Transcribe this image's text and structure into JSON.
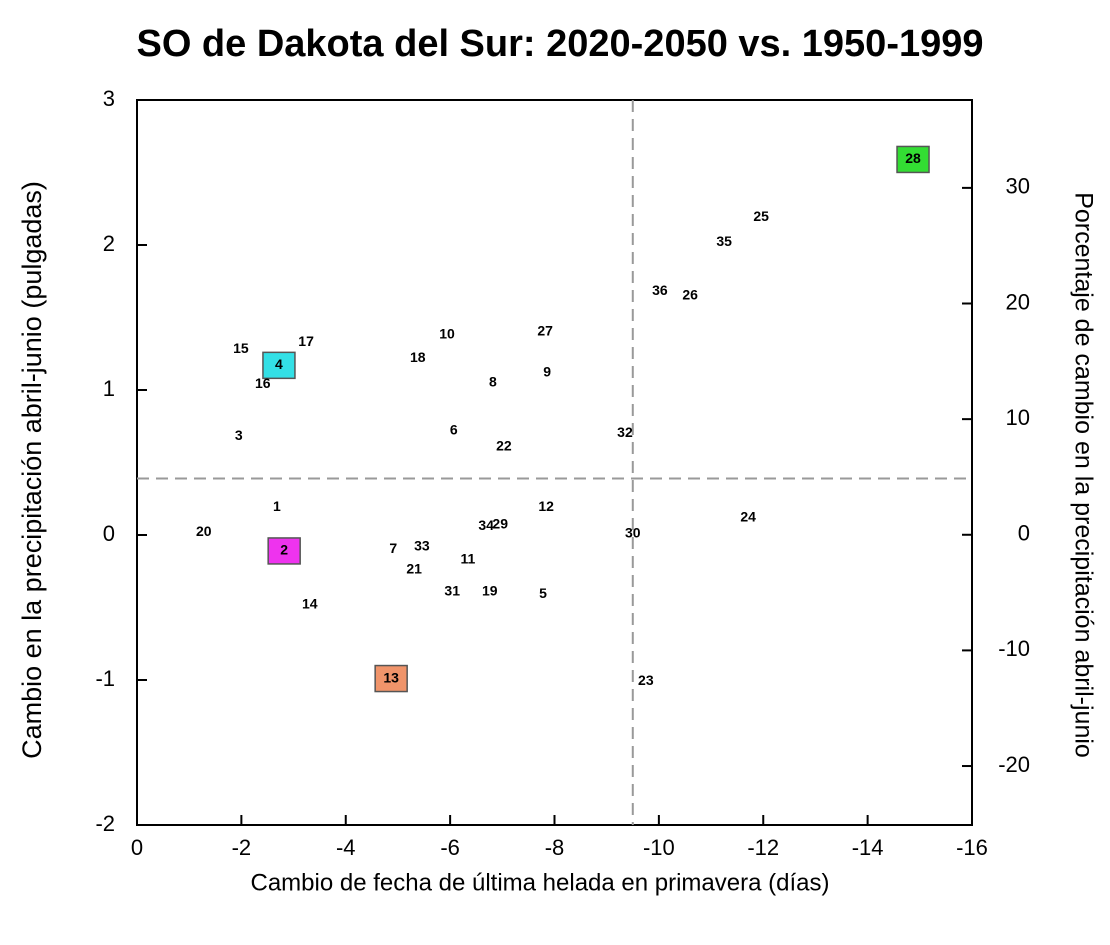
{
  "chart_data": {
    "type": "scatter",
    "title": "SO de Dakota del Sur: 2020-2050 vs. 1950-1999",
    "xlabel": "Cambio de fecha de última helada en primavera (días)",
    "ylabel": "Cambio en la precipitación abril-junio (pulgadas)",
    "y2label": "Porcentaje de cambio en la precipitación abril-junio",
    "xlim": [
      0,
      -16
    ],
    "xticks": [
      0,
      -2,
      -4,
      -6,
      -8,
      -10,
      -12,
      -14,
      -16
    ],
    "ylim": [
      -2,
      3
    ],
    "yticks": [
      3,
      2,
      1,
      0,
      -1,
      -2
    ],
    "y2lim": [
      -25.1,
      37.6
    ],
    "y2ticks": [
      30,
      20,
      10,
      0,
      -10,
      -20
    ],
    "vline": -9.5,
    "hline": 0.39,
    "labels": [
      "28",
      "25",
      "35",
      "36",
      "26",
      "27",
      "10",
      "17",
      "15",
      "18",
      "4",
      "9",
      "16",
      "8",
      "6",
      "3",
      "32",
      "22",
      "1",
      "12",
      "24",
      "20",
      "34",
      "29",
      "30",
      "2",
      "7",
      "33",
      "11",
      "21",
      "31",
      "19",
      "5",
      "14",
      "13",
      "23"
    ],
    "x": [
      -14.87,
      -11.96,
      -11.25,
      -10.02,
      -10.6,
      -7.82,
      -5.94,
      -3.24,
      -1.99,
      -5.38,
      -2.72,
      -7.86,
      -2.41,
      -6.82,
      -6.07,
      -1.95,
      -9.35,
      -7.03,
      -2.68,
      -7.84,
      -11.71,
      -1.28,
      -6.69,
      -6.96,
      -9.5,
      -2.82,
      -4.91,
      -5.46,
      -6.34,
      -5.31,
      -6.04,
      -6.76,
      -7.78,
      -3.31,
      -4.87,
      -9.75
    ],
    "values": [
      2.59,
      2.19,
      2.02,
      1.68,
      1.65,
      1.4,
      1.38,
      1.33,
      1.28,
      1.22,
      1.17,
      1.12,
      1.04,
      1.05,
      0.72,
      0.68,
      0.7,
      0.61,
      0.19,
      0.19,
      0.12,
      0.02,
      0.06,
      0.07,
      0.01,
      -0.11,
      -0.1,
      -0.08,
      -0.17,
      -0.24,
      -0.39,
      -0.39,
      -0.41,
      -0.48,
      -0.99,
      -1.01
    ],
    "point_colors": [
      "#33dd33",
      null,
      null,
      null,
      null,
      null,
      null,
      null,
      null,
      null,
      "#33e0e6",
      null,
      null,
      null,
      null,
      null,
      null,
      null,
      null,
      null,
      null,
      null,
      null,
      null,
      null,
      "#ee33ee",
      null,
      null,
      null,
      null,
      null,
      null,
      null,
      null,
      "#f0946a",
      null
    ]
  }
}
